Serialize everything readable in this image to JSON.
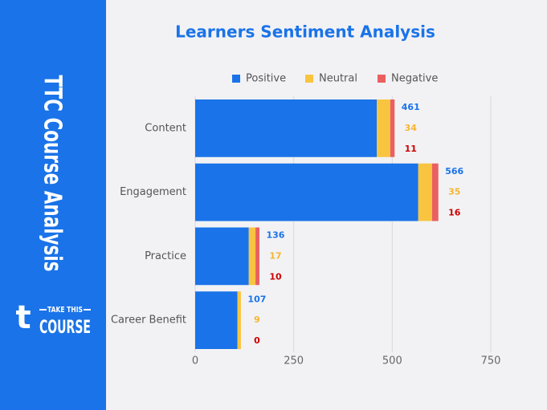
{
  "sidebar": {
    "title": "TTC Course Analysis",
    "logo": {
      "mark": "t",
      "top": "TAKE THIS",
      "bottom": "COURSE"
    }
  },
  "chart_data": {
    "type": "bar",
    "orientation": "horizontal",
    "stacked": true,
    "title": "Learners Sentiment Analysis",
    "categories": [
      "Content",
      "Engagement",
      "Practice",
      "Career Benefit"
    ],
    "series": [
      {
        "name": "Positive",
        "color": "#1a73e8",
        "label_color": "#1a73e8",
        "values": [
          461,
          566,
          136,
          107
        ]
      },
      {
        "name": "Neutral",
        "color": "#f9c440",
        "label_color": "#f5b530",
        "values": [
          34,
          35,
          17,
          9
        ]
      },
      {
        "name": "Negative",
        "color": "#ea6060",
        "label_color": "#cc0000",
        "values": [
          11,
          16,
          10,
          0
        ]
      }
    ],
    "xlim": [
      0,
      750
    ],
    "xticks": [
      0,
      250,
      500,
      750
    ],
    "grid": true,
    "legend": "top"
  }
}
